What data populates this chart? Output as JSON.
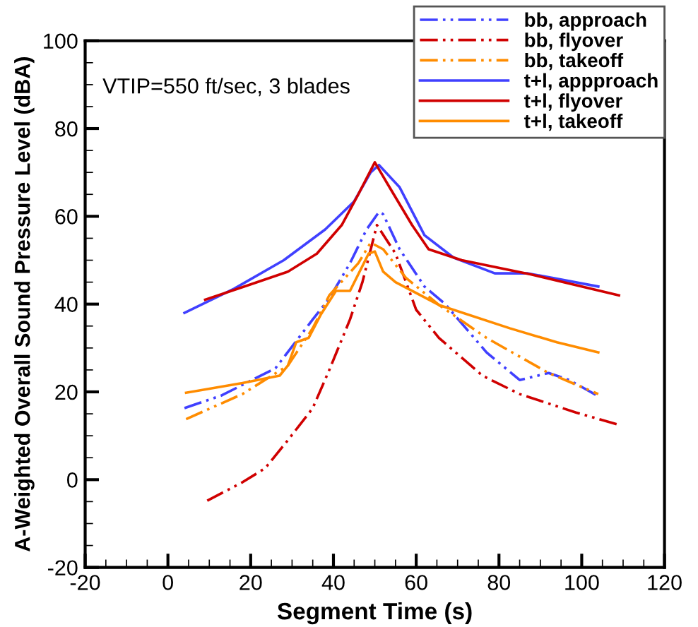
{
  "chart_data": {
    "type": "line",
    "xlabel": "Segment Time (s)",
    "ylabel": "A-Weighted Overall Sound Pressure Level (dBA)",
    "annotations": [
      "VTIP=550 ft/sec, 3 blades"
    ],
    "xlim": [
      -20,
      120
    ],
    "xticks": [
      -20,
      0,
      20,
      40,
      60,
      80,
      100,
      120
    ],
    "ylim": [
      -20,
      100
    ],
    "yticks": [
      -20,
      0,
      20,
      40,
      60,
      80,
      100
    ],
    "legend": "top right",
    "grid": false,
    "marker": "none",
    "series": [
      {
        "name": "bb, approach",
        "color": "#4040ff",
        "line_style": "dashed",
        "x": [
          4,
          13,
          26,
          35,
          39,
          44,
          48,
          51,
          52,
          56,
          62,
          67,
          77,
          85,
          92,
          97,
          104
        ],
        "values": [
          16.3,
          19.2,
          25.4,
          36.5,
          41.3,
          49.3,
          57,
          61,
          60.5,
          52.5,
          44,
          40,
          29,
          22.7,
          24.3,
          22.7,
          19
        ]
      },
      {
        "name": "bb, flyover",
        "color": "#d00000",
        "line_style": "dashed",
        "x": [
          9.5,
          18,
          23.5,
          29,
          35,
          39,
          44,
          47,
          50.5,
          55,
          60,
          65.5,
          76,
          85,
          98.6,
          109
        ],
        "values": [
          -4.8,
          -0.6,
          2.6,
          9,
          16.3,
          25,
          36.5,
          45,
          58,
          51.5,
          38.7,
          32.3,
          23.7,
          19.5,
          15.3,
          12.5
        ]
      },
      {
        "name": "bb, takeoff",
        "color": "#ff8c00",
        "line_style": "dashed",
        "x": [
          4.4,
          18,
          29,
          35,
          39,
          46,
          49,
          52,
          57.5,
          65.5,
          77,
          92,
          104
        ],
        "values": [
          13.8,
          19.5,
          26,
          34.5,
          42,
          49.3,
          54,
          52.5,
          46,
          39.8,
          32.3,
          24.3,
          19.5
        ]
      },
      {
        "name": "t+l, appproach",
        "color": "#4040ff",
        "line_style": "solid",
        "x": [
          4,
          16,
          28,
          38,
          45,
          49,
          51,
          56,
          62,
          69,
          79,
          87,
          104
        ],
        "values": [
          38,
          43.5,
          50,
          57,
          63.4,
          70,
          71.7,
          66.6,
          55.7,
          50.6,
          47,
          47,
          44
        ]
      },
      {
        "name": "t+l, flyover",
        "color": "#d00000",
        "line_style": "solid",
        "x": [
          9,
          20,
          29,
          36,
          42,
          46,
          50,
          53,
          59,
          63,
          71,
          88,
          109
        ],
        "values": [
          41,
          44.5,
          47.4,
          51.5,
          58,
          65,
          72.3,
          67.5,
          58,
          52.5,
          50,
          46.7,
          42
        ]
      },
      {
        "name": "t+l, takeoff",
        "color": "#ff8c00",
        "line_style": "solid",
        "x": [
          4.4,
          18,
          27,
          29,
          31,
          34,
          37,
          40.6,
          44,
          48.5,
          50,
          52,
          55,
          65.5,
          82.6,
          94,
          104
        ],
        "values": [
          19.8,
          22,
          23.7,
          26,
          31.3,
          32.3,
          37.7,
          43,
          43,
          51.5,
          52,
          47.4,
          45,
          39.8,
          34.5,
          31.3,
          29
        ]
      }
    ]
  }
}
